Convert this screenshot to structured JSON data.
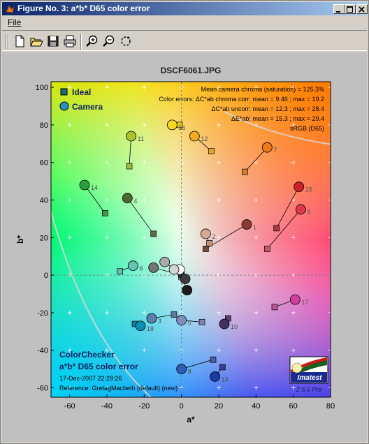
{
  "window": {
    "title": "Figure No. 3: a*b* D65 color error",
    "buttons": [
      "minimize",
      "maximize",
      "close"
    ]
  },
  "menu": {
    "file_label": "File"
  },
  "toolbar": {
    "icons": [
      "new-file-icon",
      "open-folder-icon",
      "save-icon",
      "print-icon",
      "zoom-in-icon",
      "zoom-out-icon",
      "rotate-icon"
    ]
  },
  "figure": {
    "title": "DSCF6061.JPG",
    "legend": {
      "ideal": "Ideal",
      "camera": "Camera"
    },
    "info_lines": [
      "Mean camera chroma (saturation) = 125.3%",
      "Color errors: ΔC*ab chroma corr:  mean = 9.46 ;  max = 19.2",
      "ΔC*ab uncorr:  mean = 12.3 ;  max = 28.4",
      "ΔE*ab:  mean = 15.3 ;  max = 29.4",
      "sRGB (D65)"
    ],
    "bottom_text": {
      "line1": "ColorChecker",
      "line2": "a*b* D65 color error",
      "date": "17-Dec-2007 22:29:26",
      "reference": "Reference: GretagMacbeth (default) (new)"
    },
    "logo": {
      "text": "Imatest",
      "version": "2.5.6  Pro"
    }
  },
  "chart_data": {
    "type": "scatter",
    "xlabel": "a*",
    "ylabel": "b*",
    "xlim": [
      -70,
      80
    ],
    "ylim": [
      -65,
      103
    ],
    "xticks": [
      -60,
      -40,
      -20,
      0,
      20,
      40,
      60,
      80
    ],
    "yticks": [
      -60,
      -40,
      -20,
      0,
      20,
      40,
      60,
      80,
      100
    ],
    "grid": true,
    "legend_placement": "top-left",
    "patches": [
      {
        "id": "1",
        "ideal": [
          13,
          14
        ],
        "camera": [
          35,
          27
        ],
        "ideal_color": "#734b3d",
        "camera_color": "#8a3a32"
      },
      {
        "id": "2",
        "ideal": [
          15,
          17
        ],
        "camera": [
          13,
          22
        ],
        "ideal_color": "#c4937a",
        "camera_color": "#d8a994"
      },
      {
        "id": "3",
        "ideal": [
          -4,
          -21
        ],
        "camera": [
          -16,
          -23
        ],
        "ideal_color": "#5e7a9c",
        "camera_color": "#5a82a8"
      },
      {
        "id": "4",
        "ideal": [
          -15,
          22
        ],
        "camera": [
          -29,
          41
        ],
        "ideal_color": "#5a6b3f",
        "camera_color": "#4a6a30"
      },
      {
        "id": "5",
        "ideal": [
          11,
          -25
        ],
        "camera": [
          0,
          -24
        ],
        "ideal_color": "#8480b0",
        "camera_color": "#7f8fc0"
      },
      {
        "id": "6",
        "ideal": [
          -33,
          2
        ],
        "camera": [
          -26,
          5
        ],
        "ideal_color": "#67bdaa",
        "camera_color": "#62c4b0"
      },
      {
        "id": "7",
        "ideal": [
          34,
          55
        ],
        "camera": [
          46,
          68
        ],
        "ideal_color": "#d67e2c",
        "camera_color": "#f07818"
      },
      {
        "id": "8",
        "ideal": [
          17,
          -45
        ],
        "camera": [
          0,
          -50
        ],
        "ideal_color": "#505ba6",
        "camera_color": "#2e5cb4"
      },
      {
        "id": "9",
        "ideal": [
          46,
          14
        ],
        "camera": [
          64,
          35
        ],
        "ideal_color": "#c15a63",
        "camera_color": "#e03848"
      },
      {
        "id": "10",
        "ideal": [
          25,
          -23
        ],
        "camera": [
          23,
          -26
        ],
        "ideal_color": "#5e3c6c",
        "camera_color": "#42305e"
      },
      {
        "id": "11",
        "ideal": [
          -28,
          58
        ],
        "camera": [
          -27,
          74
        ],
        "ideal_color": "#9dbc40",
        "camera_color": "#a8c428"
      },
      {
        "id": "12",
        "ideal": [
          16,
          66
        ],
        "camera": [
          7,
          74
        ],
        "ideal_color": "#e0a32e",
        "camera_color": "#f4a820"
      },
      {
        "id": "13",
        "ideal": [
          22,
          -49
        ],
        "camera": [
          18,
          -54
        ],
        "ideal_color": "#383d96",
        "camera_color": "#1a3aa0"
      },
      {
        "id": "14",
        "ideal": [
          -41,
          33
        ],
        "camera": [
          -52,
          48
        ],
        "ideal_color": "#469449",
        "camera_color": "#2ca040"
      },
      {
        "id": "15",
        "ideal": [
          51,
          25
        ],
        "camera": [
          63,
          47
        ],
        "ideal_color": "#af363c",
        "camera_color": "#d0202c"
      },
      {
        "id": "16",
        "ideal": [
          -1,
          80
        ],
        "camera": [
          -5,
          80
        ],
        "ideal_color": "#e7c71f",
        "camera_color": "#f8d820"
      },
      {
        "id": "17",
        "ideal": [
          50,
          -17
        ],
        "camera": [
          61,
          -13
        ],
        "ideal_color": "#bb5695",
        "camera_color": "#d040a0"
      },
      {
        "id": "18",
        "ideal": [
          -25,
          -26
        ],
        "camera": [
          -22,
          -27
        ],
        "ideal_color": "#0885a1",
        "camera_color": "#0890b8"
      },
      {
        "id": "",
        "ideal": [
          0,
          -1
        ],
        "camera": [
          -1,
          3
        ],
        "ideal_color": "#f3f3f2",
        "camera_color": "#ffffff"
      },
      {
        "id": "",
        "ideal": [
          0,
          0
        ],
        "camera": [
          -4,
          3
        ],
        "ideal_color": "#c8c8c8",
        "camera_color": "#d2d2d2"
      },
      {
        "id": "",
        "ideal": [
          0,
          0
        ],
        "camera": [
          -9,
          7
        ],
        "ideal_color": "#a0a0a0",
        "camera_color": "#aaaaaa"
      },
      {
        "id": "",
        "ideal": [
          0,
          0
        ],
        "camera": [
          -15,
          4
        ],
        "ideal_color": "#7a7a79",
        "camera_color": "#747474"
      },
      {
        "id": "",
        "ideal": [
          0,
          0
        ],
        "camera": [
          2,
          -2
        ],
        "ideal_color": "#555555",
        "camera_color": "#3c3c3c"
      },
      {
        "id": "",
        "ideal": [
          0,
          0
        ],
        "camera": [
          3,
          -8
        ],
        "ideal_color": "#343434",
        "camera_color": "#1a1a1a"
      }
    ]
  }
}
